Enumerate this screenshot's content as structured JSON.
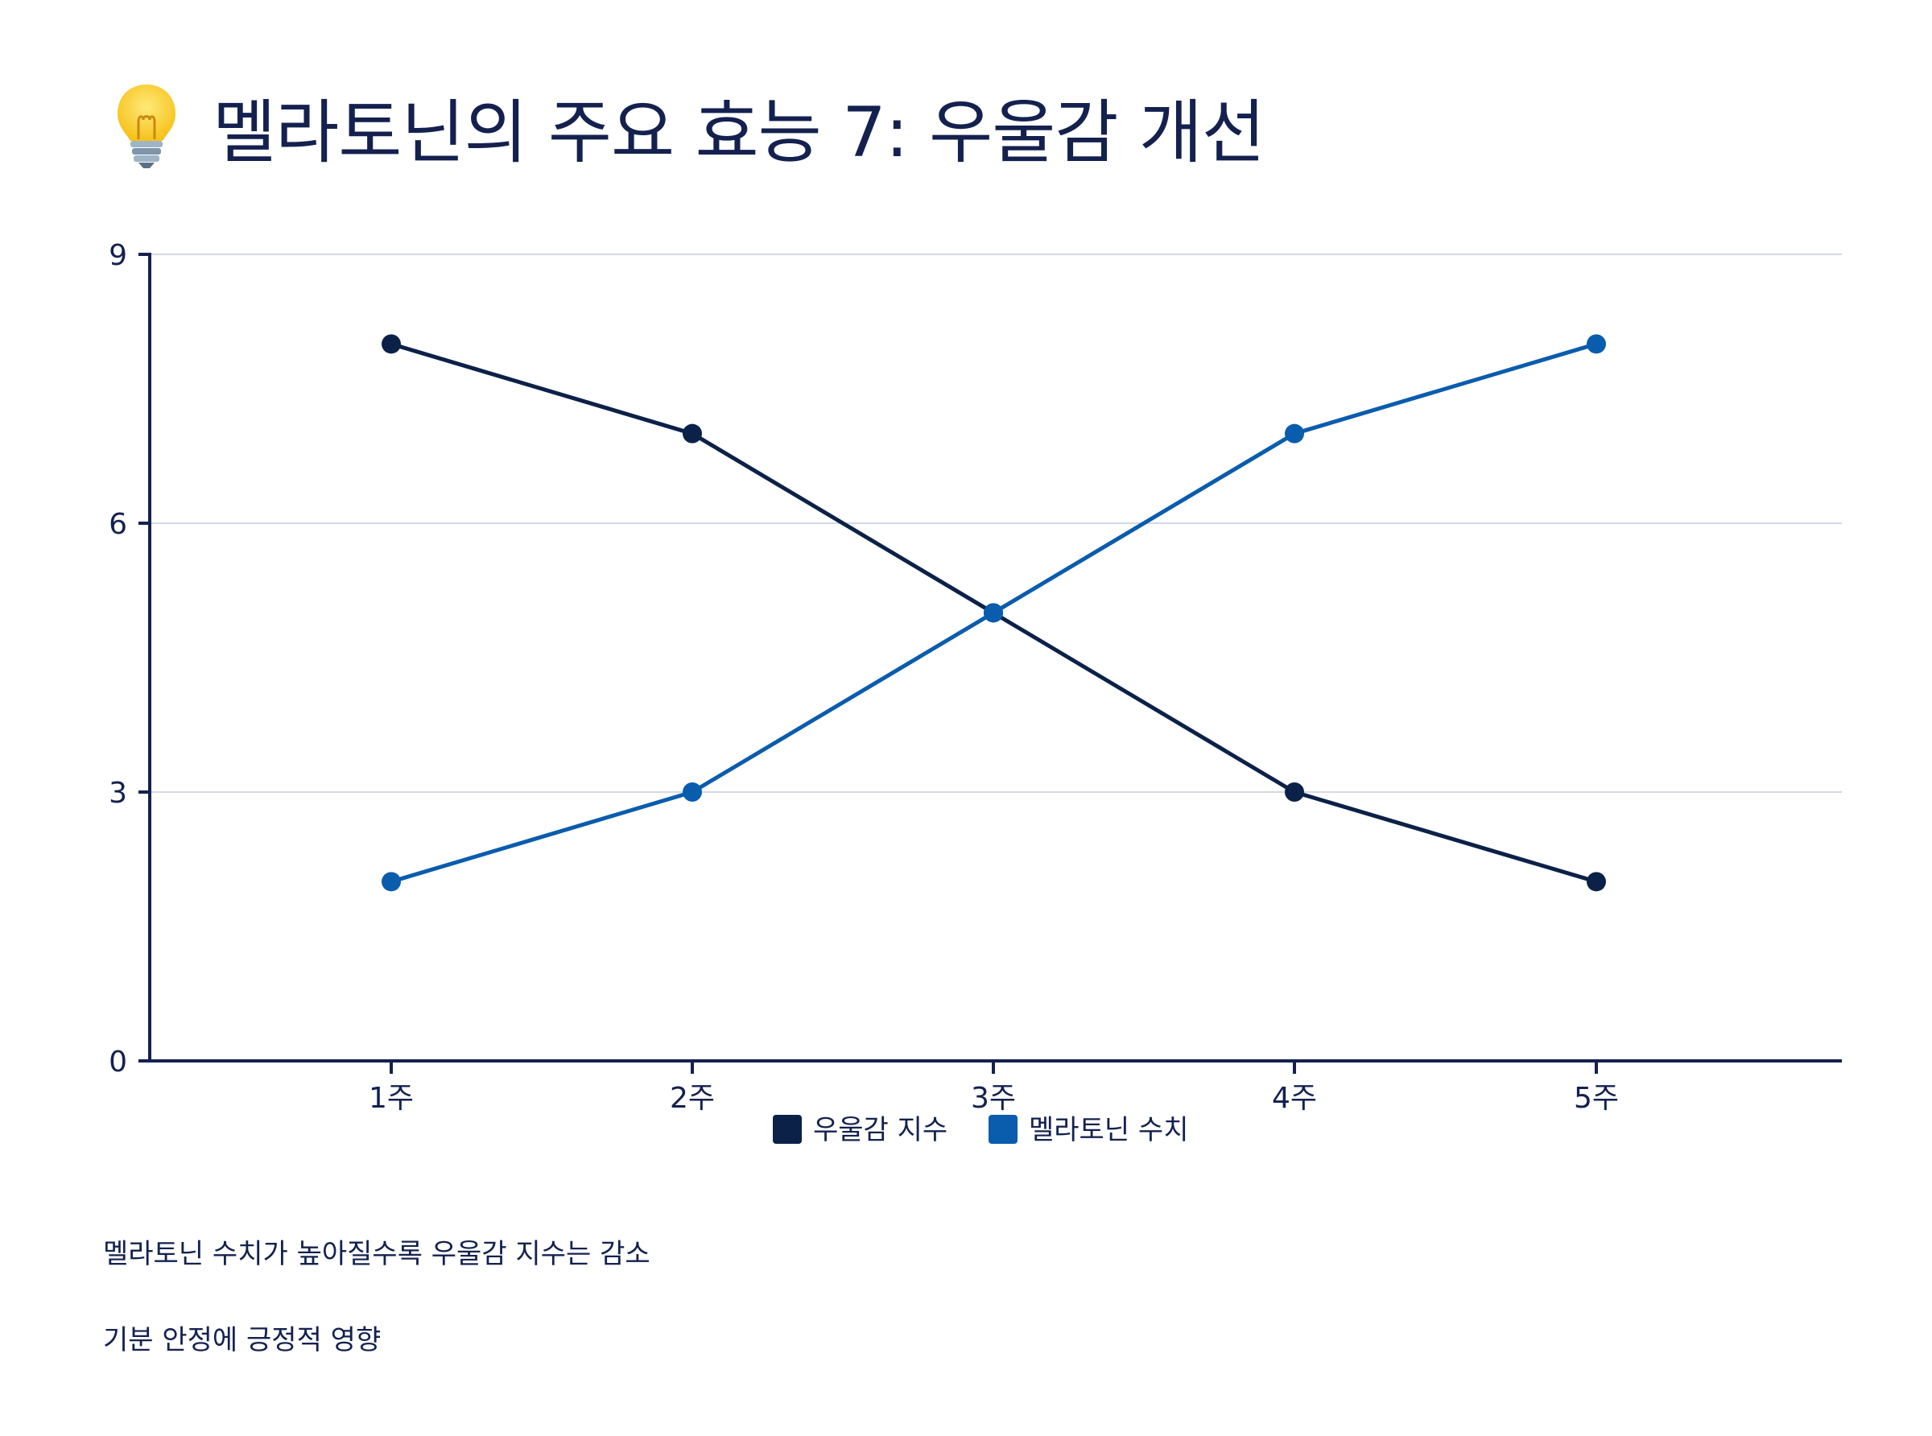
{
  "title": "멜라토닌의 주요 효능 7: 우울감 개선",
  "title_icon": "lightbulb-icon",
  "notes": [
    "멜라토닌 수치가 높아질수록 우울감 지수는 감소",
    "기분 안정에 긍정적 영향"
  ],
  "colors": {
    "text": "#14214f",
    "axis": "#14214f",
    "grid": "#d4d8e6",
    "series_depression": "#0b2148",
    "series_melatonin": "#0a5cad"
  },
  "chart_data": {
    "type": "line",
    "categories": [
      "1주",
      "2주",
      "3주",
      "4주",
      "5주"
    ],
    "series": [
      {
        "name": "우울감 지수",
        "values": [
          8,
          7,
          5,
          3,
          2
        ]
      },
      {
        "name": "멜라토닌 수치",
        "values": [
          2,
          3,
          5,
          7,
          8
        ]
      }
    ],
    "ylim": [
      0,
      9
    ],
    "yticks": [
      0,
      3,
      6,
      9
    ],
    "grid": true,
    "legend_position": "bottom-center"
  }
}
